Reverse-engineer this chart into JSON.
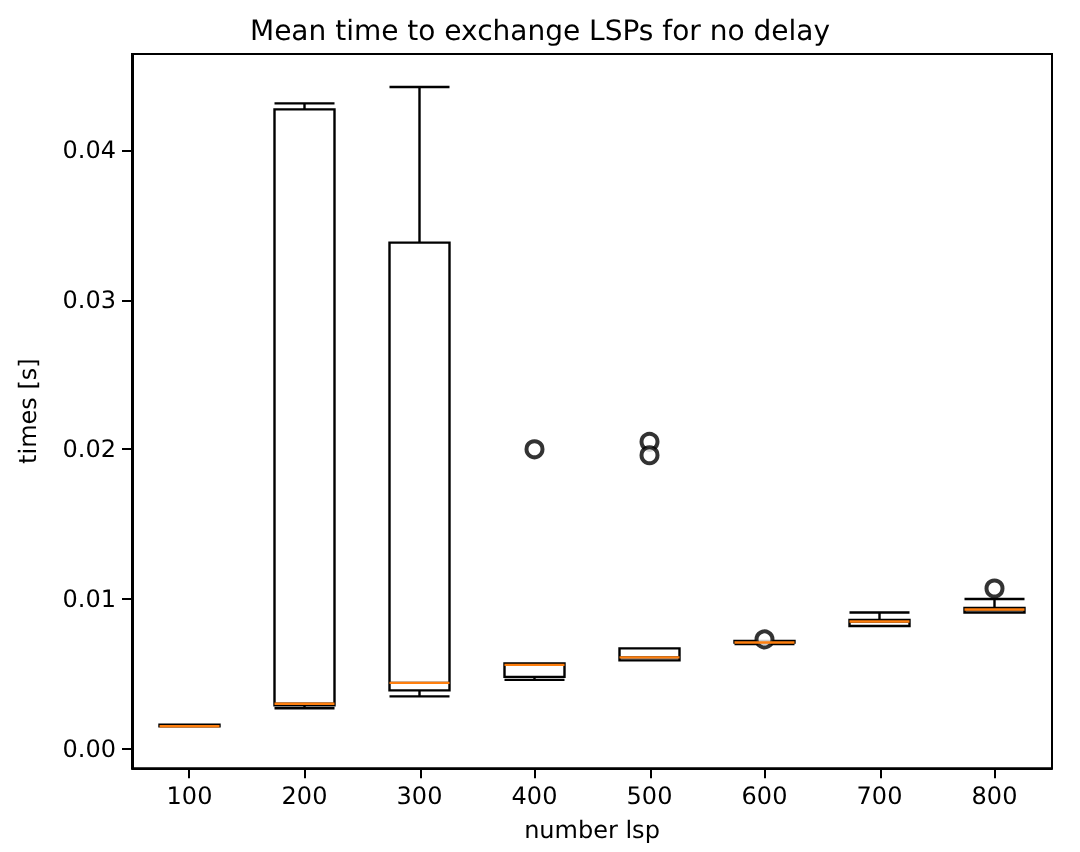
{
  "chart_data": {
    "type": "box",
    "title": "Mean time to exchange LSPs for no delay",
    "xlabel": "number lsp",
    "ylabel": "times [s]",
    "categories": [
      "100",
      "200",
      "300",
      "400",
      "500",
      "600",
      "700",
      "800"
    ],
    "boxes": [
      {
        "low": 0.0015,
        "q1": 0.0015,
        "median": 0.0015,
        "q3": 0.0016,
        "high": 0.0016
      },
      {
        "low": 0.0027,
        "q1": 0.0029,
        "median": 0.003,
        "q3": 0.0427,
        "high": 0.0431
      },
      {
        "low": 0.0035,
        "q1": 0.0039,
        "median": 0.0044,
        "q3": 0.0338,
        "high": 0.0442
      },
      {
        "low": 0.0046,
        "q1": 0.0048,
        "median": 0.0056,
        "q3": 0.0057,
        "high": 0.0057,
        "outliers": [
          0.02
        ]
      },
      {
        "low": 0.0059,
        "q1": 0.0059,
        "median": 0.0061,
        "q3": 0.0067,
        "high": 0.0067,
        "outliers": [
          0.0205,
          0.0196
        ]
      },
      {
        "low": 0.007,
        "q1": 0.0071,
        "median": 0.0071,
        "q3": 0.0072,
        "high": 0.0072,
        "outliers": [
          0.0073
        ]
      },
      {
        "low": 0.0082,
        "q1": 0.0082,
        "median": 0.0085,
        "q3": 0.0086,
        "high": 0.0091
      },
      {
        "low": 0.0091,
        "q1": 0.0091,
        "median": 0.0093,
        "q3": 0.0094,
        "high": 0.01,
        "outliers": [
          0.0107
        ]
      }
    ],
    "ylim": [
      -0.0013,
      0.0464
    ],
    "yticks": [
      {
        "value": 0,
        "label": "0.00"
      },
      {
        "value": 0.01,
        "label": "0.01"
      },
      {
        "value": 0.02,
        "label": "0.02"
      },
      {
        "value": 0.03,
        "label": "0.03"
      },
      {
        "value": 0.04,
        "label": "0.04"
      }
    ],
    "grid": false,
    "legend": false
  }
}
